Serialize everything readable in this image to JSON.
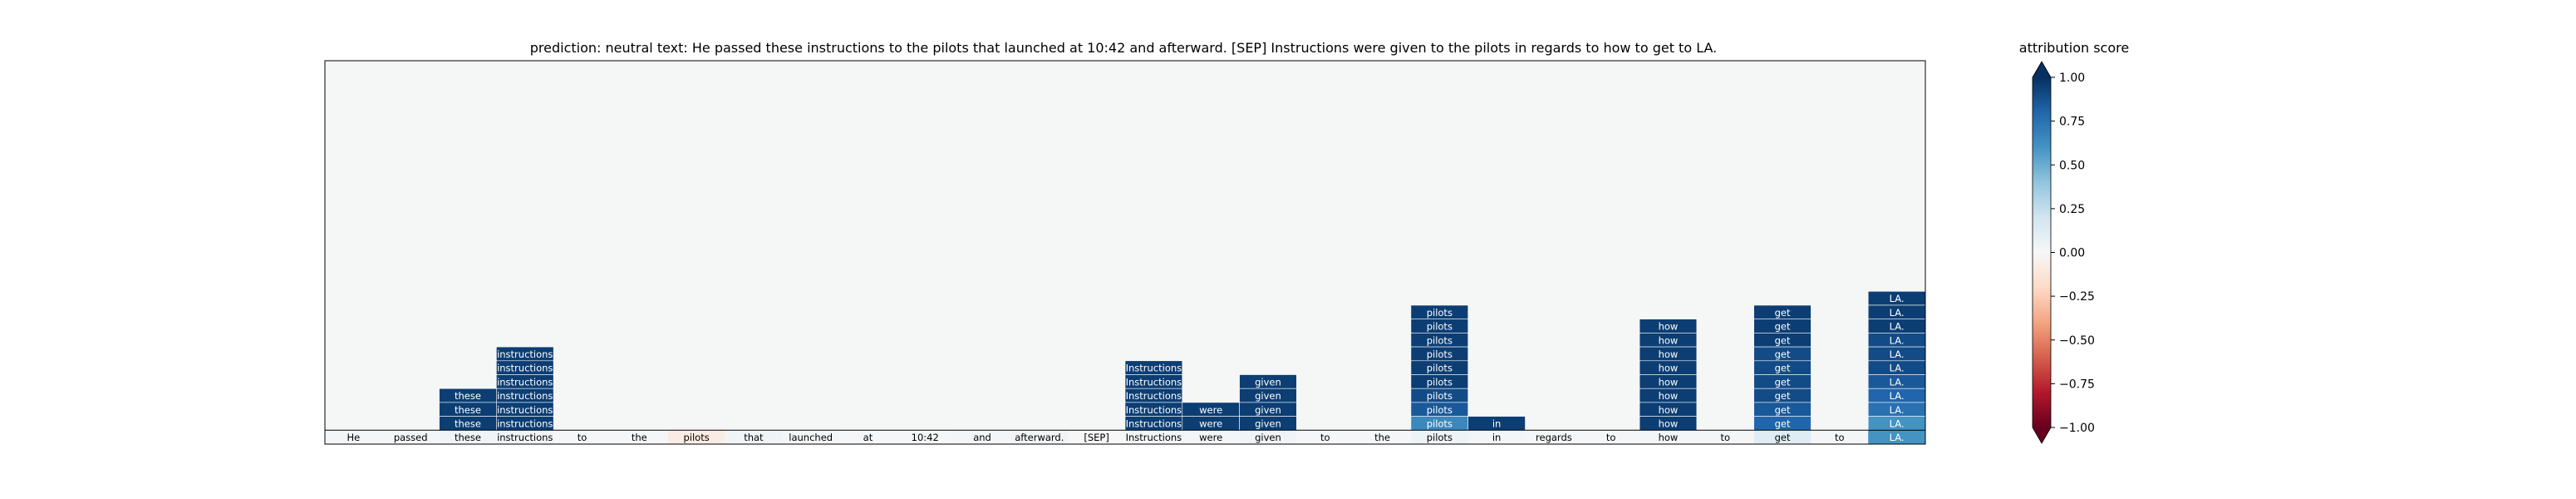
{
  "title": "prediction:  neutral     text:  He passed these instructions to the pilots that launched at 10:42 and afterward. [SEP] Instructions were given to the pilots in regards to how to get to LA.",
  "colorbar": {
    "title": "attribution score",
    "ticks": [
      "1.00",
      "0.75",
      "0.50",
      "0.25",
      "0.00",
      "−0.25",
      "−0.50",
      "−0.75",
      "−1.00"
    ],
    "tick_values": [
      1.0,
      0.75,
      0.5,
      0.25,
      0.0,
      -0.25,
      -0.5,
      -0.75,
      -1.0
    ],
    "colors": [
      "#67001f",
      "#b2182b",
      "#d6604d",
      "#f4a582",
      "#fddbc7",
      "#f7f7f7",
      "#d1e5f0",
      "#92c5de",
      "#4393c3",
      "#2166ac",
      "#053061"
    ]
  },
  "chart_data": {
    "type": "heatmap",
    "tokens": [
      "He",
      "passed",
      "these",
      "instructions",
      "to",
      "the",
      "pilots",
      "that",
      "launched",
      "at",
      "10:42",
      "and",
      "afterward.",
      "[SEP]",
      "Instructions",
      "were",
      "given",
      "to",
      "the",
      "pilots",
      "in",
      "regards",
      "to",
      "how",
      "to",
      "get",
      "to",
      "LA."
    ],
    "value_range": [
      -1.0,
      1.0
    ],
    "background_color": "#f5f6f6",
    "bottom_row_values": [
      0.02,
      0.02,
      0.03,
      0.03,
      0.01,
      0.01,
      -0.08,
      0.03,
      0.02,
      0.01,
      0.01,
      0.02,
      0.03,
      0.0,
      0.02,
      0.02,
      0.03,
      0.01,
      0.01,
      0.05,
      0.02,
      0.01,
      0.01,
      0.02,
      0.02,
      0.12,
      0.02,
      0.6
    ],
    "stacked_cells": [
      {
        "token_index": 2,
        "values": [
          0.95,
          0.95,
          0.95
        ]
      },
      {
        "token_index": 3,
        "values": [
          0.95,
          0.95,
          0.95,
          0.95,
          0.95,
          0.95
        ]
      },
      {
        "token_index": 14,
        "values": [
          0.95,
          0.95,
          0.95,
          0.95,
          0.95
        ]
      },
      {
        "token_index": 15,
        "values": [
          0.95,
          0.95
        ]
      },
      {
        "token_index": 16,
        "values": [
          0.95,
          0.95,
          0.95,
          0.95
        ]
      },
      {
        "token_index": 19,
        "values": [
          0.95,
          0.95,
          0.95,
          0.95,
          0.95,
          0.95,
          0.9,
          0.85,
          0.65
        ]
      },
      {
        "token_index": 20,
        "values": [
          0.95
        ]
      },
      {
        "token_index": 23,
        "values": [
          0.95,
          0.95,
          0.95,
          0.95,
          0.95,
          0.95,
          0.95,
          0.95
        ]
      },
      {
        "token_index": 25,
        "values": [
          0.95,
          0.95,
          0.95,
          0.9,
          0.9,
          0.9,
          0.9,
          0.85,
          0.8
        ]
      },
      {
        "token_index": 27,
        "values": [
          0.95,
          0.95,
          0.95,
          0.9,
          0.9,
          0.9,
          0.85,
          0.8,
          0.75,
          0.6
        ]
      }
    ]
  }
}
